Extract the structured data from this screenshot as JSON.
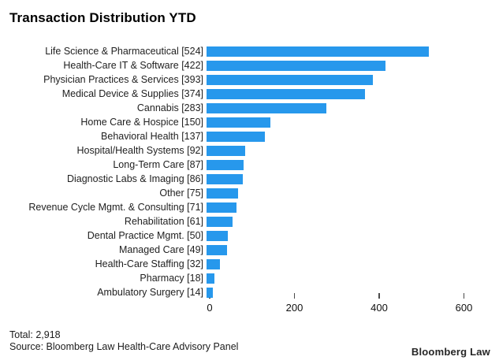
{
  "title": "Transaction Distribution YTD",
  "footer": {
    "total": "Total: 2,918",
    "source": "Source: Bloomberg Law Health-Care Advisory Panel"
  },
  "branding": {
    "logo": "Bloomberg Law"
  },
  "colors": {
    "bar": "#2798ec",
    "title_text": "#000000",
    "label_text": "#1f1f1f",
    "tick": "#4a4a4a",
    "background": "#ffffff"
  },
  "chart_data": {
    "type": "bar",
    "orientation": "horizontal",
    "title": "Transaction Distribution YTD",
    "xlabel": "",
    "ylabel": "",
    "categories": [
      "Life Science & Pharmaceutical",
      "Health-Care IT & Software",
      "Physician Practices & Services",
      "Medical Device & Supplies",
      "Cannabis",
      "Home Care & Hospice",
      "Behavioral Health",
      "Hospital/Health Systems",
      "Long-Term Care",
      "Diagnostic Labs & Imaging",
      "Other",
      "Revenue Cycle Mgmt. & Consulting",
      "Rehabilitation",
      "Dental Practice Mgmt.",
      "Managed Care",
      "Health-Care Staffing",
      "Pharmacy",
      "Ambulatory Surgery"
    ],
    "values": [
      524,
      422,
      393,
      374,
      283,
      150,
      137,
      92,
      87,
      86,
      75,
      71,
      61,
      50,
      49,
      32,
      18,
      14
    ],
    "label_format": "{category} [{value}]",
    "total": 2918,
    "xlim": [
      0,
      640
    ],
    "xticks": [
      0,
      200,
      400,
      600
    ],
    "grid": false,
    "legend": "none"
  }
}
